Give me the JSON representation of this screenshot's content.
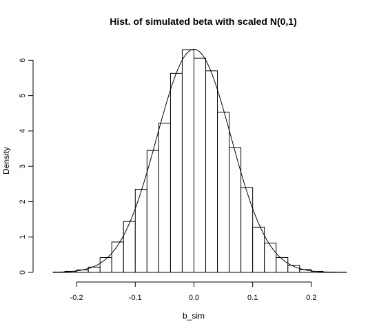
{
  "chart_data": {
    "type": "bar",
    "title": "Hist. of simulated beta with scaled N(0,1)",
    "xlabel": "b_sim",
    "ylabel": "Density",
    "xlim": [
      -0.26,
      0.28
    ],
    "ylim": [
      0,
      6.3
    ],
    "x_ticks": [
      "-0.2",
      "-0.1",
      "0.0",
      "0.1",
      "0.2"
    ],
    "y_ticks": [
      "0",
      "1",
      "2",
      "3",
      "4",
      "5",
      "6"
    ],
    "bin_width": 0.02,
    "bin_edges_start": -0.24,
    "histogram_densities": [
      0.01,
      0.03,
      0.07,
      0.15,
      0.42,
      0.86,
      1.44,
      2.35,
      3.45,
      4.22,
      5.63,
      6.3,
      6.06,
      5.7,
      4.53,
      3.53,
      2.4,
      1.28,
      0.83,
      0.42,
      0.2,
      0.08,
      0.03,
      0.01,
      0.005
    ],
    "normal_curve": {
      "mean": 0.0,
      "sd": 0.0632,
      "x_range": [
        -0.24,
        0.26
      ]
    }
  }
}
